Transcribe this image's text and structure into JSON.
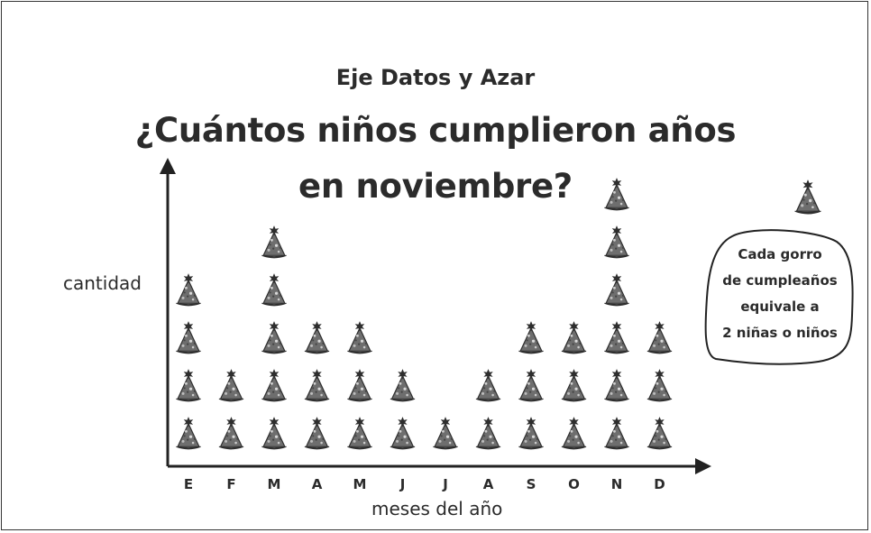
{
  "header": {
    "subtitle": "Eje Datos y Azar",
    "title_line1": "¿Cuántos niños cumplieron años",
    "title_line2": "en noviembre?"
  },
  "legend": {
    "line1": "Cada gorro",
    "line2": "de cumpleaños",
    "line3": "equivale a",
    "line4": "2 niñas o niños"
  },
  "chart_data": {
    "type": "pictograph",
    "icon": "party-hat-icon",
    "icon_value": 2,
    "categories": [
      "E",
      "F",
      "M",
      "A",
      "M",
      "J",
      "J",
      "A",
      "S",
      "O",
      "N",
      "D"
    ],
    "icon_counts": [
      4,
      2,
      5,
      3,
      3,
      2,
      1,
      2,
      3,
      3,
      6,
      3
    ],
    "xlabel": "meses del año",
    "ylabel": "cantidad"
  },
  "colors": {
    "hat_fill": "#6e6e6e",
    "hat_dark": "#3a3a3a",
    "text": "#2b2b2b",
    "axis": "#222222"
  }
}
